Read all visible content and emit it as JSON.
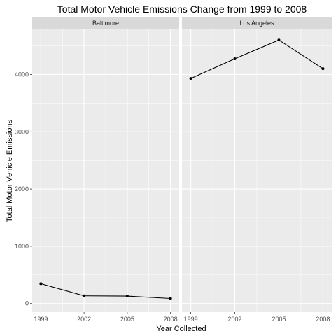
{
  "chart_data": {
    "type": "line",
    "title": "Total Motor Vehicle Emissions Change from 1999 to 2008",
    "xlabel": "Year Collected",
    "ylabel": "Total Motor Vehicle Emissions",
    "x": [
      1999,
      2002,
      2005,
      2008
    ],
    "x_tick_labels": [
      "1999",
      "2002",
      "2005",
      "2008"
    ],
    "y_ticks": [
      0,
      1000,
      2000,
      3000,
      4000
    ],
    "y_tick_labels": [
      "0",
      "1000",
      "2000",
      "3000",
      "4000"
    ],
    "ylim": [
      -150,
      4800
    ],
    "xlim": [
      1998.4,
      2008.6
    ],
    "grid": true,
    "colors": {
      "panel": "#ebebeb",
      "strip": "#d9d9d9",
      "grid": "#ffffff",
      "line": "#000000"
    },
    "panels": [
      {
        "name": "Baltimore",
        "values": [
          346.8,
          134.3,
          130.4,
          88.3
        ]
      },
      {
        "name": "Los Angeles",
        "values": [
          3931.1,
          4274.0,
          4601.4,
          4101.3
        ]
      }
    ]
  }
}
